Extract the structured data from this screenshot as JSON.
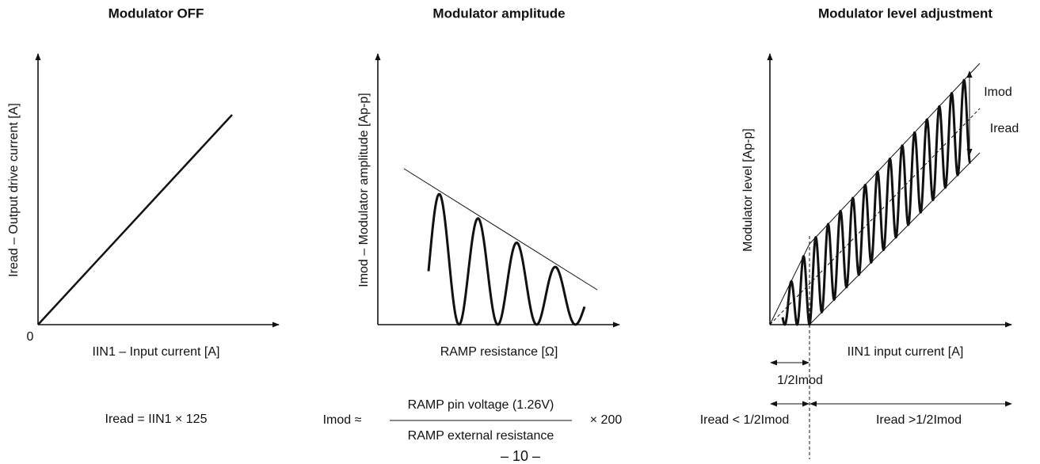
{
  "panels": [
    {
      "title": "Modulator OFF",
      "y_label": "Iread – Output drive current [A]",
      "x_label": "IIN1 – Input current [A]",
      "origin": "0",
      "formula": "Iread = IIN1 × 125"
    },
    {
      "title": "Modulator amplitude",
      "y_label": "Imod – Modulator amplitude [Ap-p]",
      "x_label": "RAMP resistance [Ω]",
      "formula": {
        "lhs": "Imod ≈",
        "numerator": "RAMP pin voltage (1.26V)",
        "denominator": "RAMP external resistance",
        "factor": "× 200"
      }
    },
    {
      "title": "Modulator level adjustment",
      "y_label": "Modulator level [Ap-p]",
      "x_label": "IIN1 input current [A]",
      "labels": {
        "imod": "Imod",
        "iread": "Iread",
        "half_imod": "1/2Imod",
        "below": "Iread < 1/2Imod",
        "above": "Iread >1/2Imod"
      }
    }
  ],
  "footer": {
    "page": "– 10 –"
  }
}
